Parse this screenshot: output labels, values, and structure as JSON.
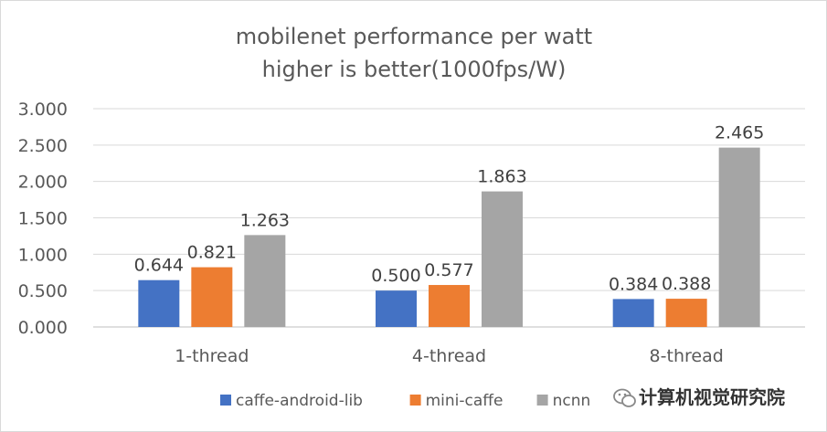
{
  "chart_data": {
    "type": "bar",
    "title": "mobilenet performance per watt",
    "subtitle": "higher is better(1000fps/W)",
    "categories": [
      "1-thread",
      "4-thread",
      "8-thread"
    ],
    "series": [
      {
        "name": "caffe-android-lib",
        "color": "#4472c4",
        "values": [
          0.644,
          0.5,
          0.384
        ],
        "labels": [
          "0.644",
          "0.500",
          "0.384"
        ]
      },
      {
        "name": "mini-caffe",
        "color": "#ed7d31",
        "values": [
          0.821,
          0.577,
          0.388
        ],
        "labels": [
          "0.821",
          "0.577",
          "0.388"
        ]
      },
      {
        "name": "ncnn",
        "color": "#a5a5a5",
        "values": [
          1.263,
          1.863,
          2.465
        ],
        "labels": [
          "1.263",
          "1.863",
          "2.465"
        ]
      }
    ],
    "yticks": [
      "0.000",
      "0.500",
      "1.000",
      "1.500",
      "2.000",
      "2.500",
      "3.000"
    ],
    "ylim": [
      0,
      3.0
    ],
    "grid": true,
    "legend_position": "bottom"
  },
  "watermark": {
    "text": "计算机视觉研究院",
    "icon": "wechat-icon"
  }
}
